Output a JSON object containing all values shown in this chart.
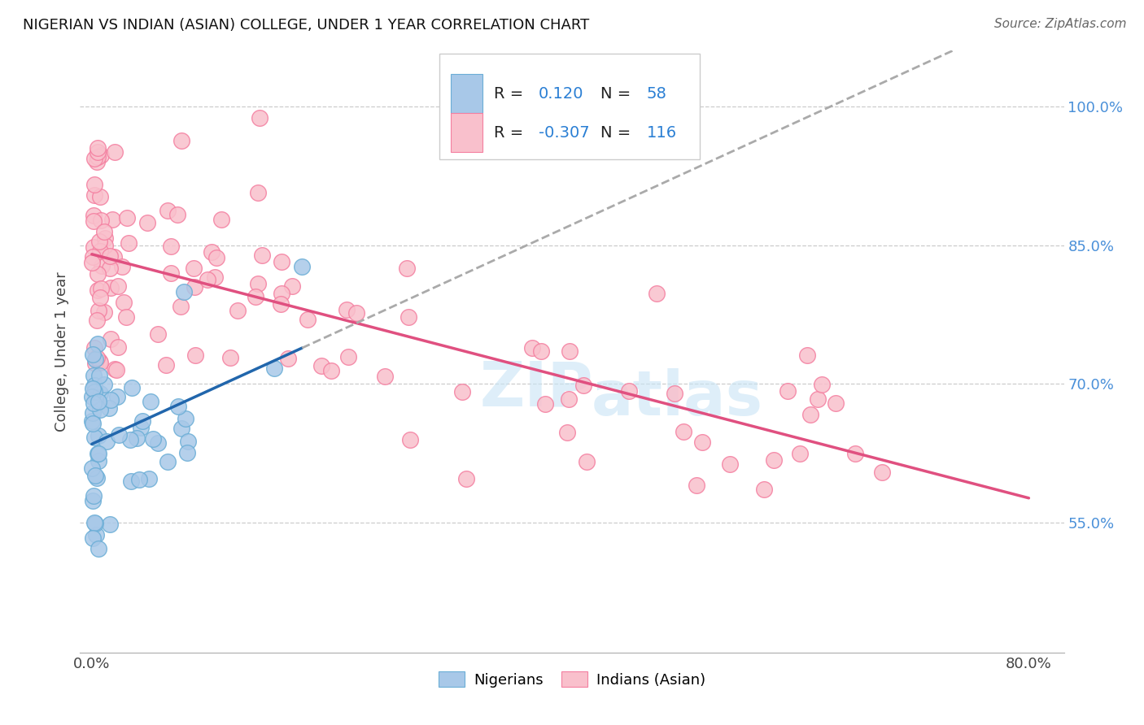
{
  "title": "NIGERIAN VS INDIAN (ASIAN) COLLEGE, UNDER 1 YEAR CORRELATION CHART",
  "source": "Source: ZipAtlas.com",
  "ylabel": "College, Under 1 year",
  "blue_color": "#a8c8e8",
  "blue_edge": "#6baed6",
  "pink_color": "#f9c0cc",
  "pink_edge": "#f47fa0",
  "line_blue": "#2166ac",
  "line_pink": "#e05080",
  "line_gray": "#aaaaaa",
  "bg_color": "#ffffff",
  "grid_color": "#cccccc",
  "ytick_vals": [
    0.55,
    0.7,
    0.85,
    1.0
  ],
  "ytick_labels": [
    "55.0%",
    "70.0%",
    "85.0%",
    "100.0%"
  ],
  "xtick_vals": [
    0.0,
    0.8
  ],
  "xtick_labels": [
    "0.0%",
    "80.0%"
  ],
  "xlim": [
    -0.01,
    0.83
  ],
  "ylim": [
    0.41,
    1.06
  ],
  "watermark1": "ZIP",
  "watermark2": "atlas",
  "legend_blue_r": "0.120",
  "legend_blue_n": "58",
  "legend_pink_r": "-0.307",
  "legend_pink_n": "116"
}
